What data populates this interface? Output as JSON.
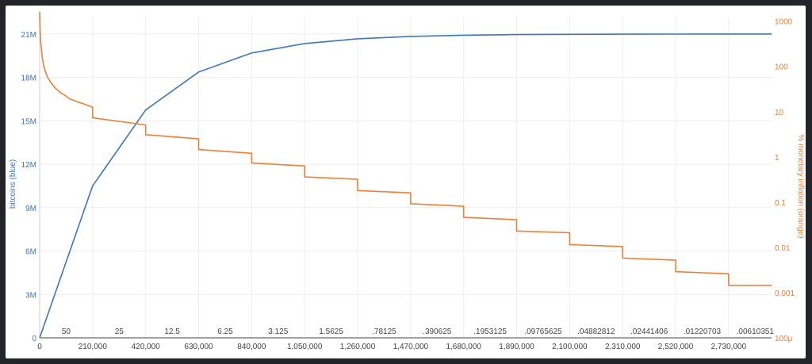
{
  "chart_data": {
    "type": "line",
    "xlabel": "",
    "ylabel_left": "bitcoins (blue)",
    "ylabel_right": "% monetary inflation (orange)",
    "x_ticks": [
      "0",
      "210,000",
      "420,000",
      "630,000",
      "840,000",
      "1,050,000",
      "1,260,000",
      "1,470,000",
      "1,680,000",
      "1,890,000",
      "2,100,000",
      "2,310,000",
      "2,520,000",
      "2,730,000"
    ],
    "y_left_ticks": [
      "0",
      "3M",
      "6M",
      "9M",
      "12M",
      "15M",
      "18M",
      "21M"
    ],
    "y_right_ticks": [
      "100μ",
      "0.001",
      "0.01",
      "0.1",
      "1",
      "10",
      "100",
      "1000"
    ],
    "reward_labels": [
      "50",
      "25",
      "12.5",
      "6.25",
      "3.125",
      "1.5625",
      ".78125",
      ".390625",
      ".1953125",
      ".09765625",
      ".04882812",
      ".02441406",
      ".01220703",
      ".00610351"
    ],
    "xlim": [
      0,
      2900000
    ],
    "ylim_left": [
      0,
      22200000
    ],
    "ylim_right_log10": [
      -4,
      3.1
    ],
    "grid": true,
    "colors": {
      "bitcoins": "#3f76b5",
      "inflation": "#ef7f36"
    },
    "series": [
      {
        "axis": "left",
        "x": [
          0,
          210000,
          420000,
          630000,
          840000,
          1050000,
          1260000,
          1470000,
          1680000,
          1890000,
          2100000,
          2310000,
          2520000,
          2730000,
          2900000
        ],
        "values": [
          0,
          10500000,
          15750000,
          18375000,
          19687500,
          20343750,
          20671875,
          20835937.5,
          20917968.75,
          20958984.38,
          20979492.19,
          20989746.09,
          20994873.05,
          20997436.52,
          20998500
        ]
      },
      {
        "axis": "right",
        "x": [
          0,
          200,
          500,
          1000,
          2000,
          4000,
          7000,
          10000,
          15000,
          20000,
          30000,
          40000,
          50000,
          60000,
          80000,
          100000,
          120000,
          150000,
          180000,
          209999,
          210000,
          419999,
          420000,
          629999,
          630000,
          839999,
          840000,
          1049999,
          1050000,
          1259999,
          1260000,
          1469999,
          1470000,
          1679999,
          1680000,
          1889999,
          1890000,
          2099999,
          2100000,
          2309999,
          2310000,
          2519999,
          2520000,
          2729999,
          2730000,
          2900000
        ],
        "values": [
          1800,
          1650,
          1000,
          900,
          600,
          350,
          250,
          160,
          110,
          85,
          60,
          48,
          40,
          34,
          27,
          23,
          19,
          16.5,
          14.5,
          12.5,
          7.3,
          5.1,
          3.1,
          2.5,
          1.45,
          1.2,
          0.73,
          0.63,
          0.36,
          0.32,
          0.18,
          0.16,
          0.092,
          0.081,
          0.046,
          0.041,
          0.023,
          0.021,
          0.0115,
          0.0104,
          0.0058,
          0.0052,
          0.0029,
          0.0026,
          0.00145,
          0.00145
        ]
      }
    ]
  }
}
